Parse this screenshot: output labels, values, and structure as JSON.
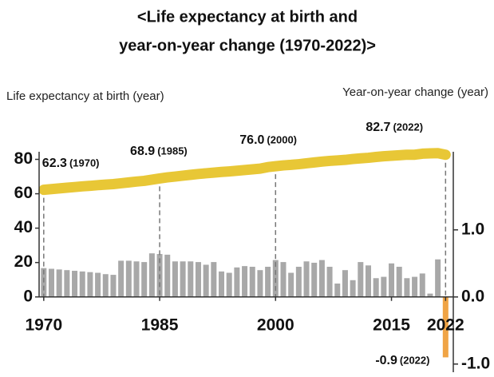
{
  "chart_data": {
    "type": "line-bar",
    "title": [
      "<Life expectancy at birth and",
      "year-on-year change (1970-2022)>"
    ],
    "y_label": "Life expectancy at birth (year)",
    "y2_label": "Year-on-year change (year)",
    "x": [
      1970,
      1971,
      1972,
      1973,
      1974,
      1975,
      1976,
      1977,
      1978,
      1979,
      1980,
      1981,
      1982,
      1983,
      1984,
      1985,
      1986,
      1987,
      1988,
      1989,
      1990,
      1991,
      1992,
      1993,
      1994,
      1995,
      1996,
      1997,
      1998,
      1999,
      2000,
      2001,
      2002,
      2003,
      2004,
      2005,
      2006,
      2007,
      2008,
      2009,
      2010,
      2011,
      2012,
      2013,
      2014,
      2015,
      2016,
      2017,
      2018,
      2019,
      2020,
      2021,
      2022
    ],
    "xlim": [
      1969.4,
      2023
    ],
    "xticks": [
      1970,
      1985,
      2000,
      2015,
      2022
    ],
    "ylim": [
      -41,
      103
    ],
    "yticks": [
      0,
      20,
      40,
      60,
      80
    ],
    "y2lim": [
      -1.05,
      2.64
    ],
    "y2ticks": [
      {
        "value": 1.0,
        "label": "1.0"
      },
      {
        "value": 0.0,
        "label": "0.0"
      },
      {
        "value": -1.0,
        "label": "-1.0"
      }
    ],
    "series": [
      {
        "name": "Life expectancy at birth",
        "kind": "line",
        "color": "#e8c736",
        "values": [
          62.3,
          62.7,
          63.1,
          63.5,
          63.9,
          64.3,
          64.6,
          65.0,
          65.3,
          65.6,
          66.1,
          66.6,
          67.1,
          67.5,
          68.2,
          68.9,
          69.5,
          70.0,
          70.5,
          71.0,
          71.5,
          71.9,
          72.3,
          72.7,
          73.0,
          73.4,
          73.8,
          74.2,
          74.6,
          75.5,
          76.0,
          76.5,
          76.8,
          77.2,
          77.7,
          78.2,
          78.7,
          79.1,
          79.4,
          79.7,
          80.2,
          80.6,
          80.9,
          81.4,
          81.8,
          82.1,
          82.4,
          82.7,
          82.7,
          83.3,
          83.5,
          83.6,
          82.7
        ]
      },
      {
        "name": "Year-on-year change",
        "kind": "bar",
        "axis": "y2",
        "color": "#a8a8a8",
        "negative_color": "#f0a445",
        "values": [
          0.43,
          0.42,
          0.41,
          0.4,
          0.39,
          0.38,
          0.37,
          0.36,
          0.34,
          0.33,
          0.54,
          0.54,
          0.53,
          0.52,
          0.65,
          0.64,
          0.63,
          0.53,
          0.53,
          0.53,
          0.52,
          0.48,
          0.52,
          0.38,
          0.36,
          0.44,
          0.46,
          0.45,
          0.4,
          0.45,
          0.55,
          0.52,
          0.36,
          0.45,
          0.53,
          0.51,
          0.55,
          0.45,
          0.2,
          0.4,
          0.25,
          0.52,
          0.47,
          0.28,
          0.3,
          0.5,
          0.45,
          0.28,
          0.3,
          0.35,
          0.05,
          0.56,
          -0.9
        ]
      }
    ],
    "annotations": [
      {
        "series": 0,
        "x": 1970,
        "label": "62.3",
        "note": "(1970)"
      },
      {
        "series": 0,
        "x": 1985,
        "label": "68.9",
        "note": "(1985)"
      },
      {
        "series": 0,
        "x": 2000,
        "label": "76.0",
        "note": "(2000)"
      },
      {
        "series": 0,
        "x": 2022,
        "label": "82.7",
        "note": "(2022)"
      },
      {
        "series": 1,
        "x": 2022,
        "label": "-0.9",
        "note": "(2022)"
      }
    ]
  }
}
